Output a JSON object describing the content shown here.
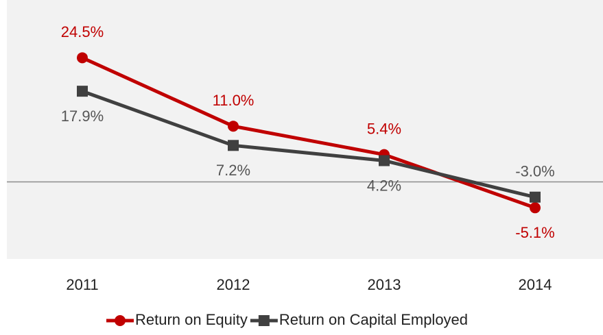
{
  "chart_data": {
    "type": "line",
    "categories": [
      "2011",
      "2012",
      "2013",
      "2014"
    ],
    "series": [
      {
        "name": "Return on Equity",
        "color": "#c00000",
        "marker": "circle",
        "values": [
          24.5,
          11.0,
          5.4,
          -5.1
        ],
        "value_labels": [
          "24.5%",
          "11.0%",
          "5.4%",
          "-5.1%"
        ]
      },
      {
        "name": "Return on Capital Employed",
        "color": "#404040",
        "marker": "square",
        "values": [
          17.9,
          7.2,
          4.2,
          -3.0
        ],
        "value_labels": [
          "17.9%",
          "7.2%",
          "4.2%",
          "-3.0%"
        ]
      }
    ],
    "ylim": [
      -15.2,
      35.9
    ]
  }
}
